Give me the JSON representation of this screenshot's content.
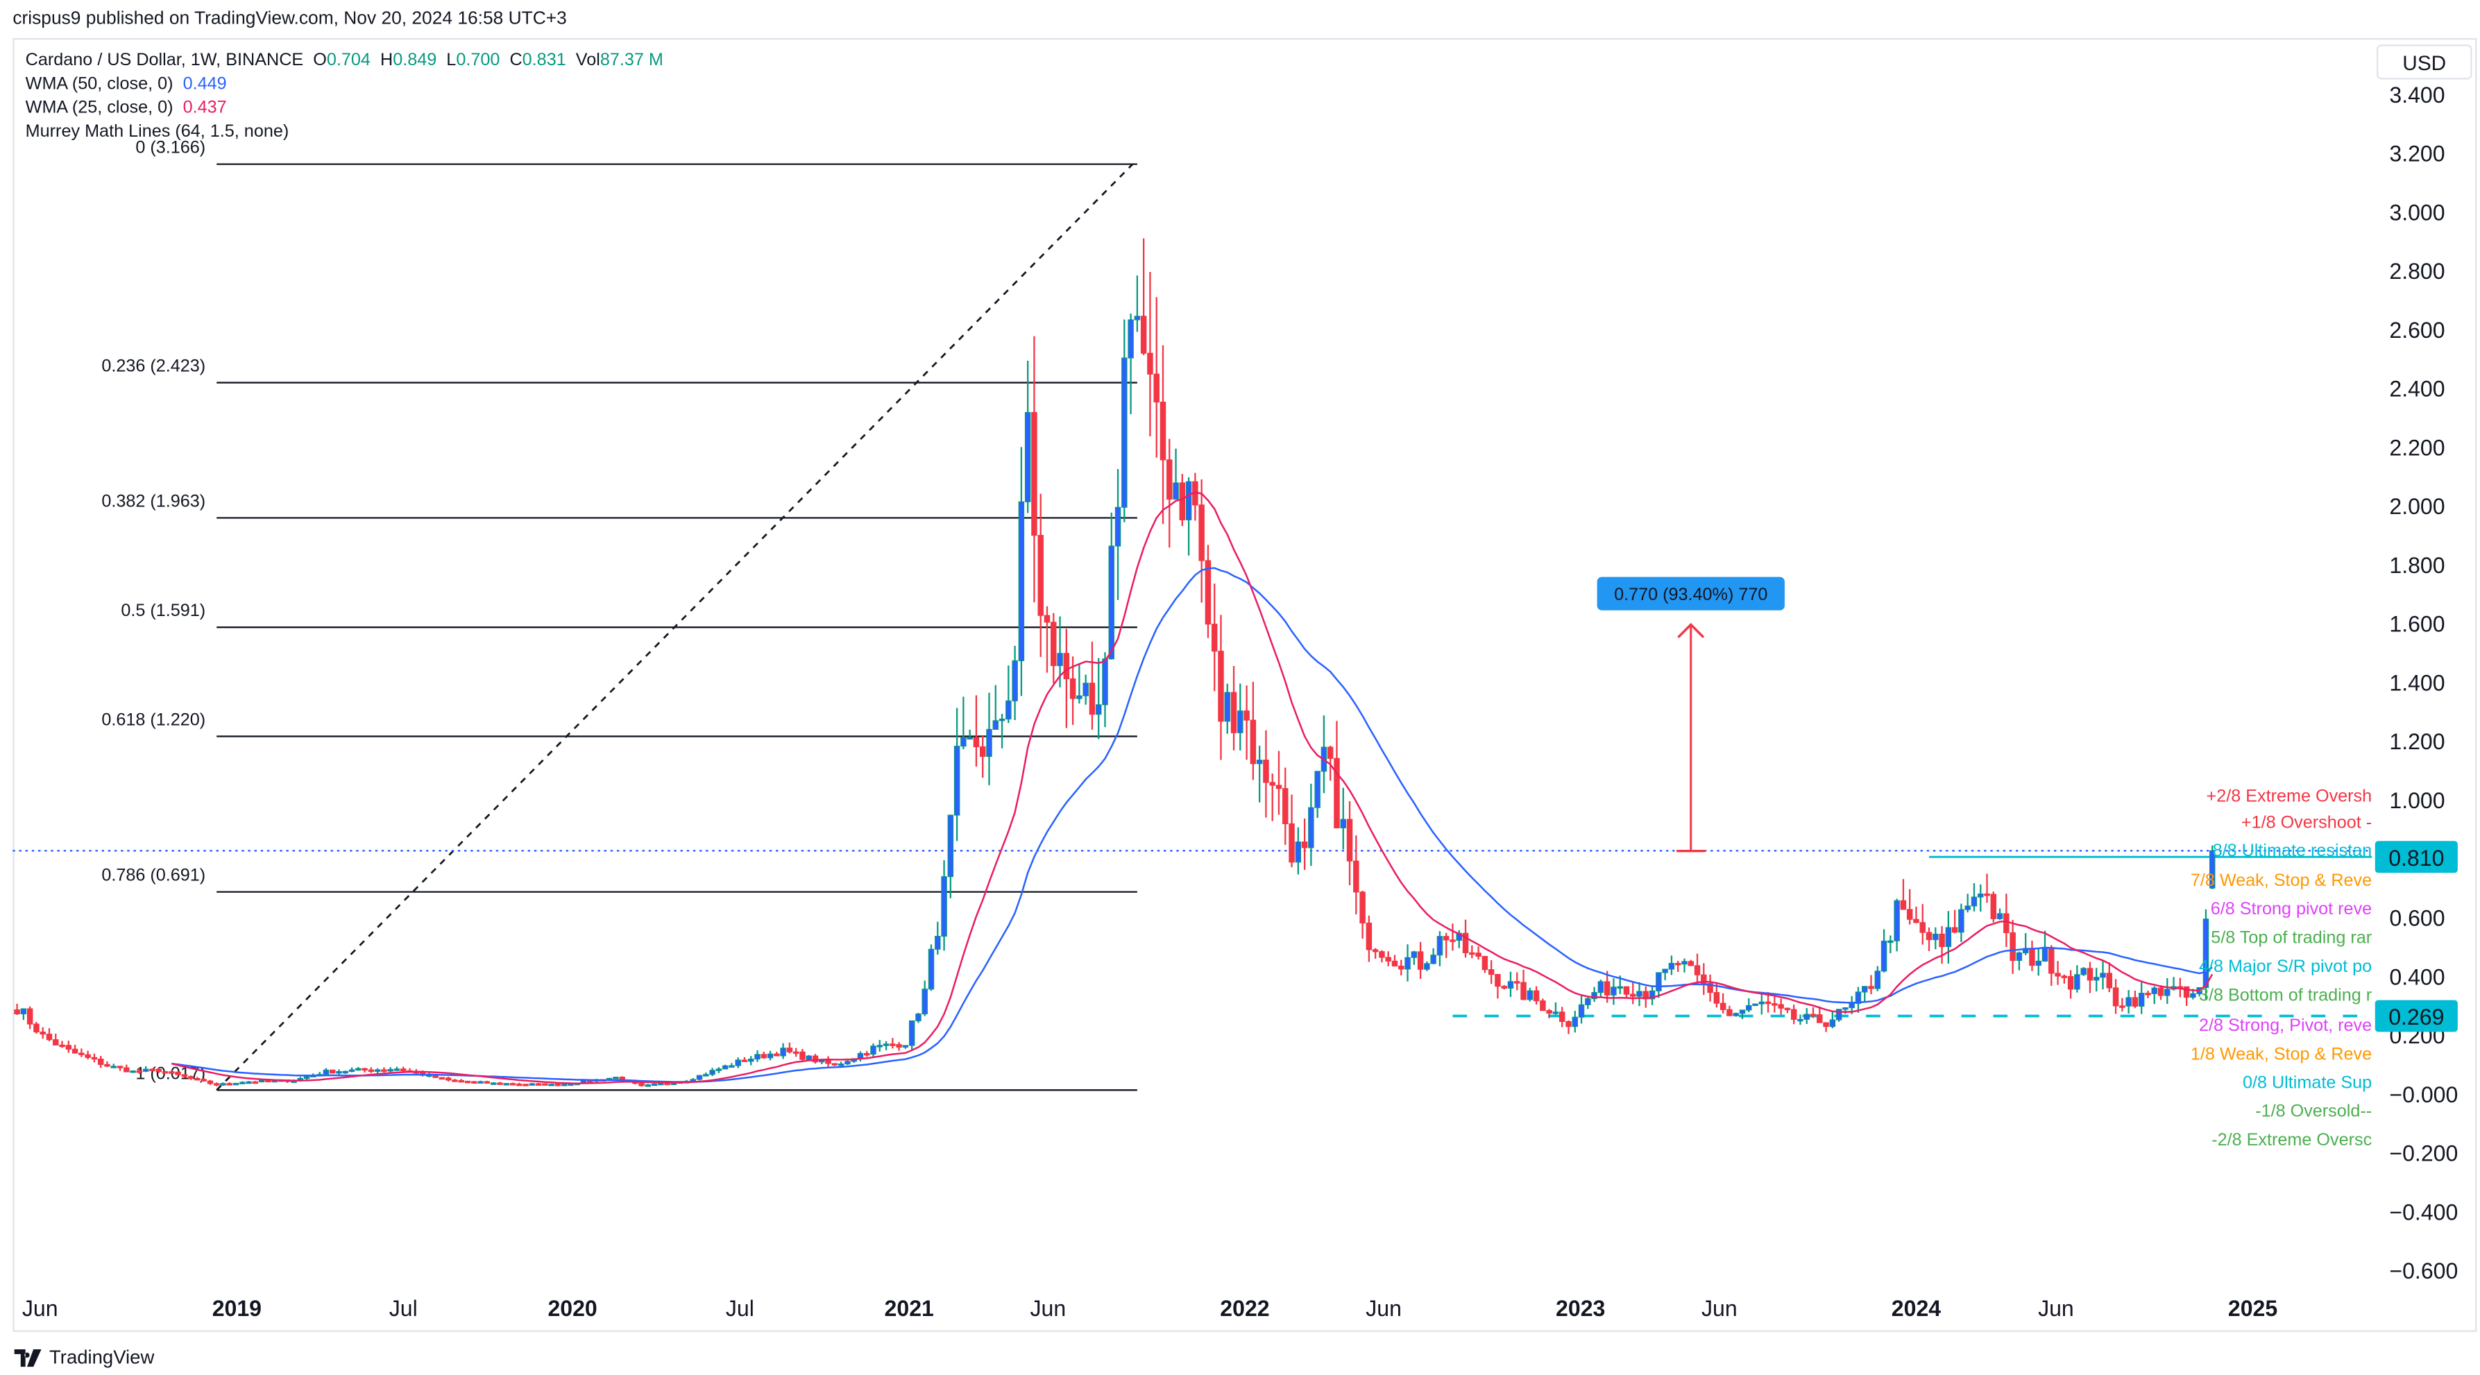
{
  "header": {
    "published": "crispus9 published on TradingView.com, Nov 20, 2024 16:58 UTC+3"
  },
  "legend": {
    "symbol": "Cardano / US Dollar, 1W, BINANCE",
    "o_label": "O",
    "o": "0.704",
    "h_label": "H",
    "h": "0.849",
    "l_label": "L",
    "l": "0.700",
    "c_label": "C",
    "c": "0.831",
    "vol_label": "Vol",
    "vol": "87.37 M",
    "wma50_label": "WMA (50, close, 0)",
    "wma50_value": "0.449",
    "wma25_label": "WMA (25, close, 0)",
    "wma25_value": "0.437",
    "murrey_label": "Murrey Math Lines (64, 1.5, none)"
  },
  "currency": "USD",
  "footer": {
    "brand": "TradingView"
  },
  "colors": {
    "bull_body": "#2962ff",
    "bull_wick": "#089981",
    "bear": "#f23645",
    "wma50": "#2962ff",
    "wma25": "#e91e63",
    "measure": "#2196f3",
    "cyan": "#00bcd4"
  },
  "chart_data": {
    "type": "candlestick",
    "title": "Cardano / US Dollar, 1W, BINANCE",
    "ylim": [
      -0.66,
      3.43
    ],
    "y_ticks": [
      "3.400",
      "3.200",
      "3.000",
      "2.800",
      "2.600",
      "2.400",
      "2.200",
      "2.000",
      "1.800",
      "1.600",
      "1.400",
      "1.200",
      "1.000",
      "0.600",
      "0.400",
      "0.200",
      "−0.000",
      "−0.200",
      "−0.400",
      "−0.600"
    ],
    "y_tick_values": [
      3.4,
      3.2,
      3.0,
      2.8,
      2.6,
      2.4,
      2.2,
      2.0,
      1.8,
      1.6,
      1.4,
      1.2,
      1.0,
      0.6,
      0.4,
      0.2,
      0,
      -0.2,
      -0.4,
      -0.6
    ],
    "x_ticks": [
      {
        "label": "Jun",
        "date": "2018-06-01",
        "bold": false
      },
      {
        "label": "2019",
        "date": "2019-01-01",
        "bold": true
      },
      {
        "label": "Jul",
        "date": "2019-07-01",
        "bold": false
      },
      {
        "label": "2020",
        "date": "2020-01-01",
        "bold": true
      },
      {
        "label": "Jul",
        "date": "2020-07-01",
        "bold": false
      },
      {
        "label": "2021",
        "date": "2021-01-01",
        "bold": true
      },
      {
        "label": "Jun",
        "date": "2021-06-01",
        "bold": false
      },
      {
        "label": "2022",
        "date": "2022-01-01",
        "bold": true
      },
      {
        "label": "Jun",
        "date": "2022-06-01",
        "bold": false
      },
      {
        "label": "2023",
        "date": "2023-01-01",
        "bold": true
      },
      {
        "label": "Jun",
        "date": "2023-06-01",
        "bold": false
      },
      {
        "label": "2024",
        "date": "2024-01-01",
        "bold": true
      },
      {
        "label": "Jun",
        "date": "2024-06-01",
        "bold": false
      },
      {
        "label": "2025",
        "date": "2025-01-01",
        "bold": true
      }
    ],
    "weekly_close_path": [
      [
        "2018-05-07",
        0.3
      ],
      [
        "2018-06-04",
        0.2
      ],
      [
        "2018-07-02",
        0.15
      ],
      [
        "2018-08-13",
        0.1
      ],
      [
        "2018-09-10",
        0.08
      ],
      [
        "2018-10-08",
        0.085
      ],
      [
        "2018-11-19",
        0.05
      ],
      [
        "2018-12-10",
        0.035
      ],
      [
        "2019-01-07",
        0.045
      ],
      [
        "2019-03-04",
        0.05
      ],
      [
        "2019-04-08",
        0.08
      ],
      [
        "2019-06-24",
        0.09
      ],
      [
        "2019-08-19",
        0.05
      ],
      [
        "2019-10-07",
        0.04
      ],
      [
        "2019-12-16",
        0.035
      ],
      [
        "2020-02-17",
        0.06
      ],
      [
        "2020-03-16",
        0.03
      ],
      [
        "2020-05-04",
        0.05
      ],
      [
        "2020-07-06",
        0.12
      ],
      [
        "2020-08-17",
        0.15
      ],
      [
        "2020-10-12",
        0.1
      ],
      [
        "2020-11-23",
        0.16
      ],
      [
        "2020-12-28",
        0.18
      ],
      [
        "2021-01-18",
        0.35
      ],
      [
        "2021-02-08",
        0.7
      ],
      [
        "2021-02-22",
        1.1
      ],
      [
        "2021-03-15",
        1.2
      ],
      [
        "2021-04-05",
        1.2
      ],
      [
        "2021-04-26",
        1.5
      ],
      [
        "2021-05-10",
        2.3
      ],
      [
        "2021-05-24",
        1.6
      ],
      [
        "2021-06-14",
        1.45
      ],
      [
        "2021-07-05",
        1.4
      ],
      [
        "2021-07-19",
        1.2
      ],
      [
        "2021-08-02",
        1.4
      ],
      [
        "2021-08-16",
        2.1
      ],
      [
        "2021-08-30",
        2.8
      ],
      [
        "2021-09-13",
        2.5
      ],
      [
        "2021-09-27",
        2.2
      ],
      [
        "2021-10-18",
        2.1
      ],
      [
        "2021-11-08",
        2.0
      ],
      [
        "2021-11-22",
        1.6
      ],
      [
        "2021-12-06",
        1.3
      ],
      [
        "2021-12-27",
        1.35
      ],
      [
        "2022-01-17",
        1.1
      ],
      [
        "2022-01-31",
        1.1
      ],
      [
        "2022-02-21",
        0.85
      ],
      [
        "2022-03-07",
        0.8
      ],
      [
        "2022-03-28",
        1.15
      ],
      [
        "2022-04-18",
        0.9
      ],
      [
        "2022-05-09",
        0.55
      ],
      [
        "2022-06-13",
        0.47
      ],
      [
        "2022-07-11",
        0.45
      ],
      [
        "2022-08-08",
        0.55
      ],
      [
        "2022-09-05",
        0.47
      ],
      [
        "2022-10-10",
        0.38
      ],
      [
        "2022-11-14",
        0.32
      ],
      [
        "2022-12-19",
        0.25
      ],
      [
        "2023-01-16",
        0.35
      ],
      [
        "2023-02-13",
        0.38
      ],
      [
        "2023-03-13",
        0.35
      ],
      [
        "2023-04-17",
        0.45
      ],
      [
        "2023-05-15",
        0.37
      ],
      [
        "2023-06-12",
        0.27
      ],
      [
        "2023-07-17",
        0.31
      ],
      [
        "2023-08-21",
        0.26
      ],
      [
        "2023-09-25",
        0.25
      ],
      [
        "2023-10-23",
        0.3
      ],
      [
        "2023-11-13",
        0.38
      ],
      [
        "2023-12-11",
        0.62
      ],
      [
        "2024-01-08",
        0.55
      ],
      [
        "2024-01-29",
        0.5
      ],
      [
        "2024-02-26",
        0.65
      ],
      [
        "2024-03-11",
        0.72
      ],
      [
        "2024-04-01",
        0.58
      ],
      [
        "2024-04-15",
        0.47
      ],
      [
        "2024-05-20",
        0.47
      ],
      [
        "2024-06-17",
        0.39
      ],
      [
        "2024-07-15",
        0.42
      ],
      [
        "2024-08-05",
        0.32
      ],
      [
        "2024-09-02",
        0.33
      ],
      [
        "2024-09-30",
        0.37
      ],
      [
        "2024-10-21",
        0.33
      ],
      [
        "2024-11-04",
        0.35
      ],
      [
        "2024-11-11",
        0.58
      ],
      [
        "2024-11-18",
        0.831
      ]
    ],
    "last_candle": {
      "open": 0.704,
      "high": 0.849,
      "low": 0.7,
      "close": 0.831
    },
    "fib_retracement": {
      "from": {
        "date": "2018-12-10",
        "price": 0.017
      },
      "to": {
        "date": "2021-09-01",
        "price": 3.166
      },
      "end_date": "2021-09-06",
      "levels": [
        {
          "label": "0 (3.166)",
          "price": 3.166
        },
        {
          "label": "0.236 (2.423)",
          "price": 2.423
        },
        {
          "label": "0.382 (1.963)",
          "price": 1.963
        },
        {
          "label": "0.5 (1.591)",
          "price": 1.591
        },
        {
          "label": "0.618 (1.220)",
          "price": 1.22
        },
        {
          "label": "0.786 (0.691)",
          "price": 0.691
        },
        {
          "label": "1 (0.017)",
          "price": 0.017
        }
      ]
    },
    "murrey_labels": [
      {
        "text": "+2/8 Extreme Oversh",
        "price": 1.02,
        "color": "#f23645"
      },
      {
        "text": "+1/8 Overshoot -",
        "price": 0.93,
        "color": "#f23645"
      },
      {
        "text": "8/8 Ultimate resistan",
        "price": 0.835,
        "color": "#00bcd4"
      },
      {
        "text": "7/8 Weak, Stop & Reve",
        "price": 0.733,
        "color": "#ff9800"
      },
      {
        "text": "6/8 Strong pivot reve",
        "price": 0.636,
        "color": "#e040fb"
      },
      {
        "text": "5/8 Top of trading rar",
        "price": 0.538,
        "color": "#4caf50"
      },
      {
        "text": "4/8 Major S/R pivot po",
        "price": 0.44,
        "color": "#00bcd4"
      },
      {
        "text": "3/8 Bottom of trading r",
        "price": 0.343,
        "color": "#4caf50"
      },
      {
        "text": "2/8 Strong, Pivot, reve",
        "price": 0.24,
        "color": "#e040fb"
      },
      {
        "text": "1/8 Weak, Stop & Reve",
        "price": 0.142,
        "color": "#ff9800"
      },
      {
        "text": "0/8 Ultimate Sup",
        "price": 0.045,
        "color": "#00bcd4"
      },
      {
        "text": "-1/8 Oversold--",
        "price": -0.052,
        "color": "#4caf50"
      },
      {
        "text": "-2/8 Extreme Oversc",
        "price": -0.15,
        "color": "#4caf50"
      }
    ],
    "resistance_line": {
      "price": 0.81,
      "from": "2024-01-15",
      "label": "0.810"
    },
    "support_line": {
      "price": 0.269,
      "from": "2022-08-15",
      "label": "0.269"
    },
    "current_price_line": {
      "price": 0.831
    },
    "measure": {
      "label": "0.770 (93.40%) 770",
      "date": "2023-05-01",
      "from_price": 0.83,
      "to_price": 1.6
    }
  }
}
